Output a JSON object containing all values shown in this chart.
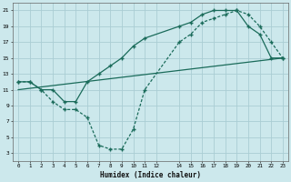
{
  "bg_color": "#cce8ec",
  "grid_color": "#aacdd4",
  "line_color": "#1a6b5a",
  "xlabel": "Humidex (Indice chaleur)",
  "xlim": [
    -0.5,
    23.5
  ],
  "ylim": [
    2,
    22
  ],
  "xticks": [
    0,
    1,
    2,
    3,
    4,
    5,
    6,
    7,
    8,
    9,
    10,
    11,
    12,
    14,
    15,
    16,
    17,
    18,
    19,
    20,
    21,
    22,
    23
  ],
  "yticks": [
    3,
    5,
    7,
    9,
    11,
    13,
    15,
    17,
    19,
    21
  ],
  "line1_x": [
    0,
    1,
    2,
    3,
    4,
    5,
    6,
    7,
    8,
    9,
    10,
    11,
    14,
    15,
    16,
    17,
    18,
    19,
    20,
    21,
    22,
    23
  ],
  "line1_y": [
    12,
    12,
    11,
    11,
    9.5,
    9.5,
    12,
    13,
    14,
    15,
    16.5,
    17.5,
    19,
    19.5,
    20.5,
    21,
    21,
    21,
    19,
    18,
    15,
    15
  ],
  "line2_x": [
    0,
    1,
    2,
    3,
    4,
    5,
    6,
    7,
    8,
    9,
    10,
    11,
    14,
    15,
    16,
    17,
    18,
    19,
    20,
    21,
    22,
    23
  ],
  "line2_y": [
    12,
    12,
    11,
    9.5,
    8.5,
    8.5,
    7.5,
    4,
    3.5,
    3.5,
    6,
    11,
    17,
    18,
    19.5,
    20,
    20.5,
    21,
    20.5,
    19,
    17,
    15
  ],
  "line3_x": [
    0,
    23
  ],
  "line3_y": [
    11,
    15
  ]
}
